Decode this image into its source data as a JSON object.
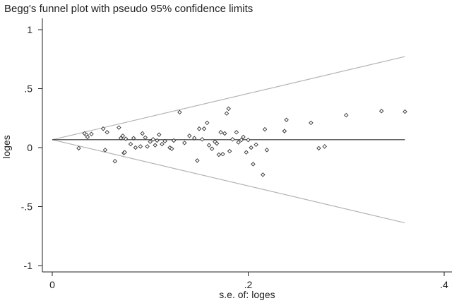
{
  "chart_data": {
    "type": "scatter",
    "title": "Begg's funnel plot with pseudo 95% confidence limits",
    "xlabel": "s.e. of: loges",
    "ylabel": "loges",
    "xlim": [
      0,
      0.4
    ],
    "ylim": [
      -1,
      1
    ],
    "x_ticks": [
      0,
      0.2,
      0.4
    ],
    "x_tick_labels": [
      "0",
      ".2",
      ".4"
    ],
    "y_ticks": [
      1,
      0.5,
      0,
      -0.5,
      -1
    ],
    "y_tick_labels": [
      "1",
      ".5",
      "0",
      "-.5",
      "-1"
    ],
    "pooled_estimate": 0.067,
    "limits": {
      "x": [
        0,
        0.36
      ],
      "upper": [
        0.067,
        0.772
      ],
      "lower": [
        0.067,
        -0.638
      ]
    },
    "points": [
      {
        "x": 0.027,
        "y": -0.005
      },
      {
        "x": 0.033,
        "y": 0.12
      },
      {
        "x": 0.035,
        "y": 0.108
      },
      {
        "x": 0.036,
        "y": 0.09
      },
      {
        "x": 0.04,
        "y": 0.115
      },
      {
        "x": 0.052,
        "y": 0.16
      },
      {
        "x": 0.054,
        "y": -0.02
      },
      {
        "x": 0.056,
        "y": 0.13
      },
      {
        "x": 0.064,
        "y": -0.115
      },
      {
        "x": 0.068,
        "y": 0.17
      },
      {
        "x": 0.07,
        "y": 0.08
      },
      {
        "x": 0.072,
        "y": 0.1
      },
      {
        "x": 0.073,
        "y": -0.045
      },
      {
        "x": 0.074,
        "y": -0.04
      },
      {
        "x": 0.075,
        "y": 0.075
      },
      {
        "x": 0.08,
        "y": 0.03
      },
      {
        "x": 0.083,
        "y": 0.08
      },
      {
        "x": 0.085,
        "y": 0.0
      },
      {
        "x": 0.09,
        "y": 0.01
      },
      {
        "x": 0.092,
        "y": 0.12
      },
      {
        "x": 0.095,
        "y": 0.085
      },
      {
        "x": 0.097,
        "y": 0.01
      },
      {
        "x": 0.1,
        "y": 0.05
      },
      {
        "x": 0.103,
        "y": 0.07
      },
      {
        "x": 0.105,
        "y": 0.02
      },
      {
        "x": 0.107,
        "y": 0.06
      },
      {
        "x": 0.109,
        "y": 0.11
      },
      {
        "x": 0.112,
        "y": 0.03
      },
      {
        "x": 0.115,
        "y": 0.055
      },
      {
        "x": 0.12,
        "y": 0.0
      },
      {
        "x": 0.122,
        "y": -0.01
      },
      {
        "x": 0.124,
        "y": 0.06
      },
      {
        "x": 0.13,
        "y": 0.3
      },
      {
        "x": 0.135,
        "y": 0.04
      },
      {
        "x": 0.14,
        "y": 0.1
      },
      {
        "x": 0.145,
        "y": 0.08
      },
      {
        "x": 0.148,
        "y": -0.11
      },
      {
        "x": 0.15,
        "y": 0.16
      },
      {
        "x": 0.153,
        "y": 0.07
      },
      {
        "x": 0.155,
        "y": 0.16
      },
      {
        "x": 0.158,
        "y": 0.21
      },
      {
        "x": 0.16,
        "y": 0.02
      },
      {
        "x": 0.163,
        "y": -0.01
      },
      {
        "x": 0.166,
        "y": 0.05
      },
      {
        "x": 0.168,
        "y": 0.035
      },
      {
        "x": 0.17,
        "y": -0.06
      },
      {
        "x": 0.172,
        "y": 0.13
      },
      {
        "x": 0.174,
        "y": -0.055
      },
      {
        "x": 0.176,
        "y": 0.12
      },
      {
        "x": 0.178,
        "y": 0.29
      },
      {
        "x": 0.18,
        "y": 0.33
      },
      {
        "x": 0.181,
        "y": -0.03
      },
      {
        "x": 0.184,
        "y": 0.07
      },
      {
        "x": 0.188,
        "y": 0.13
      },
      {
        "x": 0.19,
        "y": 0.045
      },
      {
        "x": 0.193,
        "y": 0.065
      },
      {
        "x": 0.195,
        "y": 0.09
      },
      {
        "x": 0.198,
        "y": -0.04
      },
      {
        "x": 0.2,
        "y": 0.065
      },
      {
        "x": 0.203,
        "y": 0.0
      },
      {
        "x": 0.205,
        "y": -0.14
      },
      {
        "x": 0.208,
        "y": 0.025
      },
      {
        "x": 0.215,
        "y": -0.23
      },
      {
        "x": 0.217,
        "y": 0.155
      },
      {
        "x": 0.219,
        "y": -0.02
      },
      {
        "x": 0.237,
        "y": 0.14
      },
      {
        "x": 0.239,
        "y": 0.235
      },
      {
        "x": 0.264,
        "y": 0.21
      },
      {
        "x": 0.272,
        "y": -0.005
      },
      {
        "x": 0.278,
        "y": 0.01
      },
      {
        "x": 0.3,
        "y": 0.275
      },
      {
        "x": 0.336,
        "y": 0.31
      },
      {
        "x": 0.36,
        "y": 0.305
      }
    ]
  }
}
